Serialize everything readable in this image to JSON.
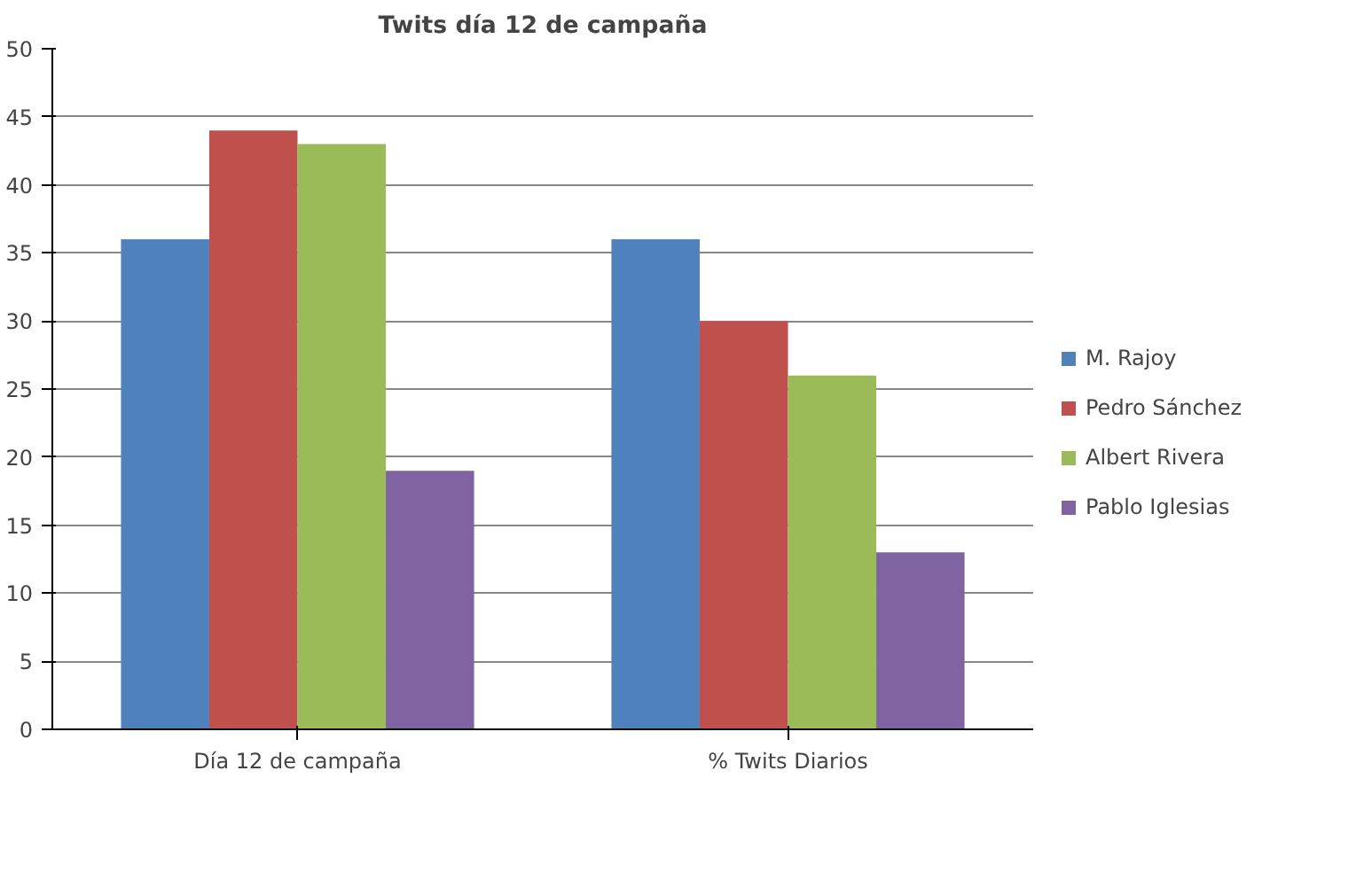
{
  "chart_data": {
    "type": "bar",
    "title": "Twits día 12 de campaña",
    "categories": [
      "Día 12 de campaña",
      "% Twits Diarios"
    ],
    "series": [
      {
        "name": "M. Rajoy",
        "color": "#4f81bd",
        "values": [
          36,
          36
        ]
      },
      {
        "name": "Pedro Sánchez",
        "color": "#c0504d",
        "values": [
          44,
          30
        ]
      },
      {
        "name": "Albert Rivera",
        "color": "#9bbb59",
        "values": [
          43,
          26
        ]
      },
      {
        "name": "Pablo Iglesias",
        "color": "#8064a2",
        "values": [
          19,
          13
        ]
      }
    ],
    "ylim": [
      0,
      50
    ],
    "yticks": [
      0,
      5,
      10,
      15,
      20,
      25,
      30,
      35,
      40,
      45,
      50
    ],
    "grid": "y",
    "legend": "right"
  }
}
